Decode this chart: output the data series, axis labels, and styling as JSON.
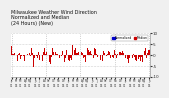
{
  "title_line1": "Milwaukee Weather Wind Direction",
  "title_line2": "Normalized and Median",
  "title_line3": "(24 Hours) (New)",
  "title_fontsize": 3.5,
  "background_color": "#f0f0f0",
  "plot_bg_color": "#ffffff",
  "grid_color": "#aaaaaa",
  "bar_color": "#cc0000",
  "legend_label1": "Normalized",
  "legend_label2": "Median",
  "legend_color1": "#0000cc",
  "legend_color2": "#cc0000",
  "ylim": [
    -10,
    10
  ],
  "ytick_vals": [
    -10,
    -5,
    0,
    5,
    10
  ],
  "ytick_labels": [
    "-10",
    "-5",
    "0",
    "5",
    "10"
  ],
  "n_points": 160,
  "seed": 7
}
